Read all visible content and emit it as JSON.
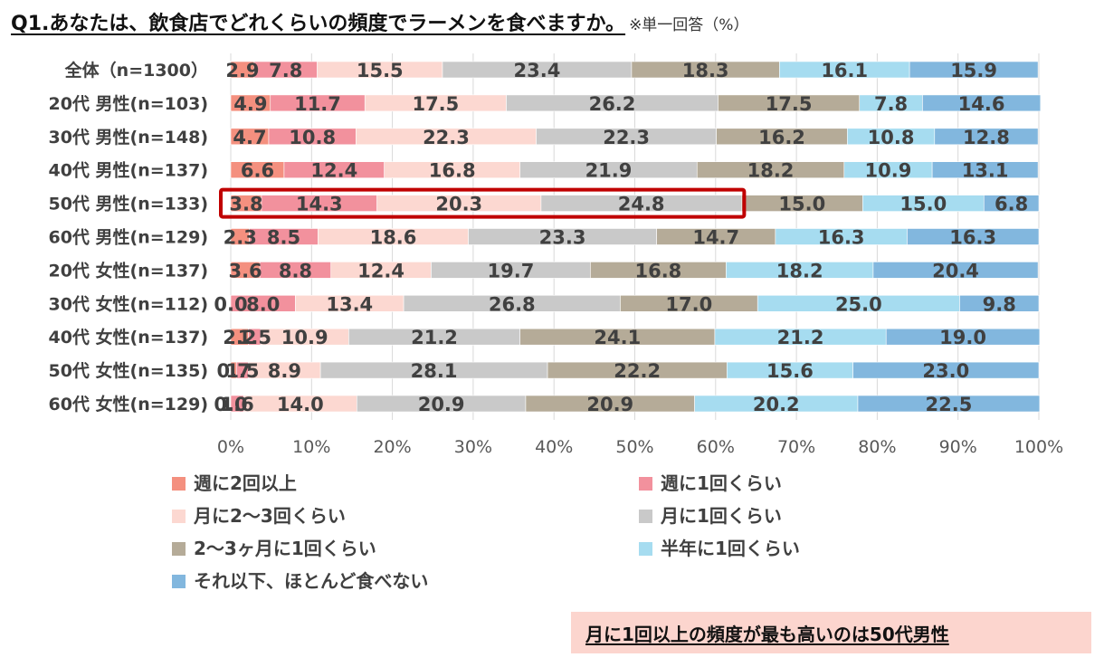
{
  "title": "Q1.あなたは、飲食店でどれくらいの頻度でラーメンを食べますか。",
  "note": "※単一回答（%）",
  "callout": "月に1回以上の頻度が最も高いのは50代男性",
  "highlight_row": 5,
  "chart_data": {
    "type": "bar",
    "orientation": "horizontal",
    "stacked": true,
    "percent": true,
    "xlim": [
      0,
      100
    ],
    "x_ticks": [
      "0%",
      "10%",
      "20%",
      "30%",
      "40%",
      "50%",
      "60%",
      "70%",
      "80%",
      "90%",
      "100%"
    ],
    "legend_position": "bottom",
    "grid": true,
    "categories": [
      "全体（n=1300）",
      "20代 男性(n=103)",
      "30代 男性(n=148)",
      "40代 男性(n=137)",
      "50代 男性(n=133)",
      "60代 男性(n=129)",
      "20代 女性(n=137)",
      "30代 女性(n=112)",
      "40代 女性(n=137)",
      "50代 女性(n=135)",
      "60代 女性(n=129)"
    ],
    "series": [
      {
        "name": "週に2回以上",
        "color": "#f4907f",
        "values": [
          2.9,
          4.9,
          4.7,
          6.6,
          3.8,
          2.3,
          3.6,
          0.0,
          2.2,
          0.7,
          0.0
        ],
        "labels": [
          "2.9",
          "4.9",
          "4.7",
          "6.6",
          "3.8",
          "2.3",
          "3.6",
          "0.0",
          "2.2",
          "0.7",
          "0.0"
        ]
      },
      {
        "name": "週に1回くらい",
        "color": "#f2919d",
        "values": [
          7.8,
          11.7,
          10.8,
          12.4,
          14.3,
          8.5,
          8.8,
          8.0,
          1.5,
          1.5,
          1.6
        ],
        "labels": [
          "7.8",
          "11.7",
          "10.8",
          "12.4",
          "14.3",
          "8.5",
          "8.8",
          "8.0",
          "1.5",
          "1.5",
          "1.6"
        ]
      },
      {
        "name": "月に2～3回くらい",
        "color": "#fcd8d1",
        "values": [
          15.5,
          17.5,
          22.3,
          16.8,
          20.3,
          18.6,
          12.4,
          13.4,
          10.9,
          8.9,
          14.0
        ],
        "labels": [
          "15.5",
          "17.5",
          "22.3",
          "16.8",
          "20.3",
          "18.6",
          "12.4",
          "13.4",
          "10.9",
          "8.9",
          "14.0"
        ]
      },
      {
        "name": "月に1回くらい",
        "color": "#c9c9c9",
        "values": [
          23.4,
          26.2,
          22.3,
          21.9,
          24.8,
          23.3,
          19.7,
          26.8,
          21.2,
          28.1,
          20.9
        ],
        "labels": [
          "23.4",
          "26.2",
          "22.3",
          "21.9",
          "24.8",
          "23.3",
          "19.7",
          "26.8",
          "21.2",
          "28.1",
          "20.9"
        ]
      },
      {
        "name": "2～3ヶ月に1回くらい",
        "color": "#b5ab98",
        "values": [
          18.3,
          17.5,
          16.2,
          18.2,
          15.0,
          14.7,
          16.8,
          17.0,
          24.1,
          22.2,
          20.9
        ],
        "labels": [
          "18.3",
          "17.5",
          "16.2",
          "18.2",
          "15.0",
          "14.7",
          "16.8",
          "17.0",
          "24.1",
          "22.2",
          "20.9"
        ]
      },
      {
        "name": "半年に1回くらい",
        "color": "#a6dcf0",
        "values": [
          16.1,
          7.8,
          10.8,
          10.9,
          15.0,
          16.3,
          18.2,
          25.0,
          21.2,
          15.6,
          20.2
        ],
        "labels": [
          "16.1",
          "7.8",
          "10.8",
          "10.9",
          "15.0",
          "16.3",
          "18.2",
          "25.0",
          "21.2",
          "15.6",
          "20.2"
        ]
      },
      {
        "name": "それ以下、ほとんど食べない",
        "color": "#82b7de",
        "values": [
          15.9,
          14.6,
          12.8,
          13.1,
          6.8,
          16.3,
          20.4,
          9.8,
          19.0,
          23.0,
          22.5
        ],
        "labels": [
          "15.9",
          "14.6",
          "12.8",
          "13.1",
          "6.8",
          "16.3",
          "20.4",
          "9.8",
          "19.0",
          "23.0",
          "22.5"
        ]
      }
    ]
  },
  "colors": {
    "highlight_border": "#c00000",
    "callout_bg": "#fcd5ce"
  }
}
